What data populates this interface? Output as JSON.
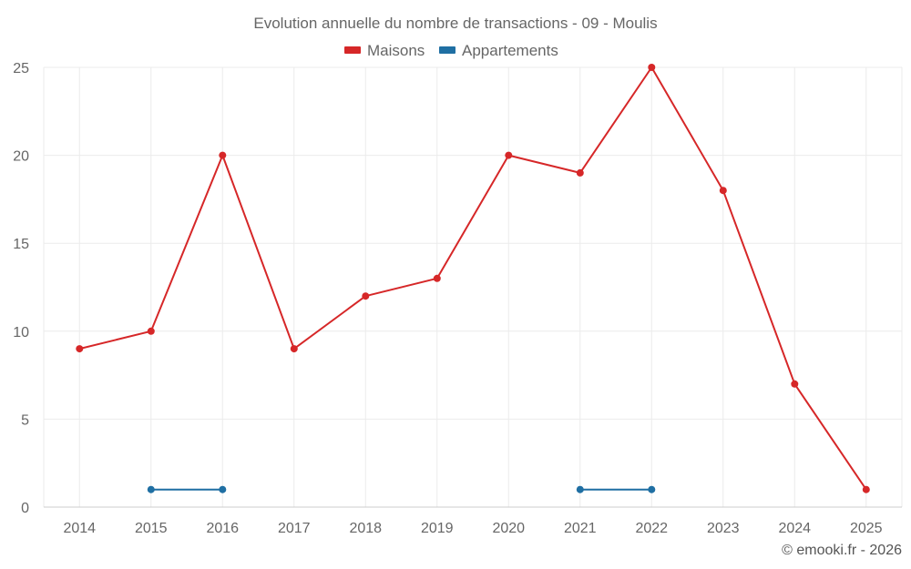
{
  "chart_data": {
    "type": "line",
    "title": "Evolution annuelle du nombre de transactions - 09 - Moulis",
    "x": [
      "2014",
      "2015",
      "2016",
      "2017",
      "2018",
      "2019",
      "2020",
      "2021",
      "2022",
      "2023",
      "2024",
      "2025"
    ],
    "series": [
      {
        "name": "Maisons",
        "color": "#d62728",
        "values": [
          9,
          10,
          20,
          9,
          12,
          13,
          20,
          19,
          25,
          18,
          7,
          1
        ]
      },
      {
        "name": "Appartements",
        "color": "#1f6fa3",
        "values": [
          null,
          1,
          1,
          null,
          null,
          null,
          null,
          1,
          1,
          null,
          null,
          null
        ]
      }
    ],
    "ylim": [
      0,
      25
    ],
    "yticks": [
      0,
      5,
      10,
      15,
      20,
      25
    ],
    "grid": true,
    "legend": "top-center"
  },
  "credit": "© emooki.fr - 2026"
}
